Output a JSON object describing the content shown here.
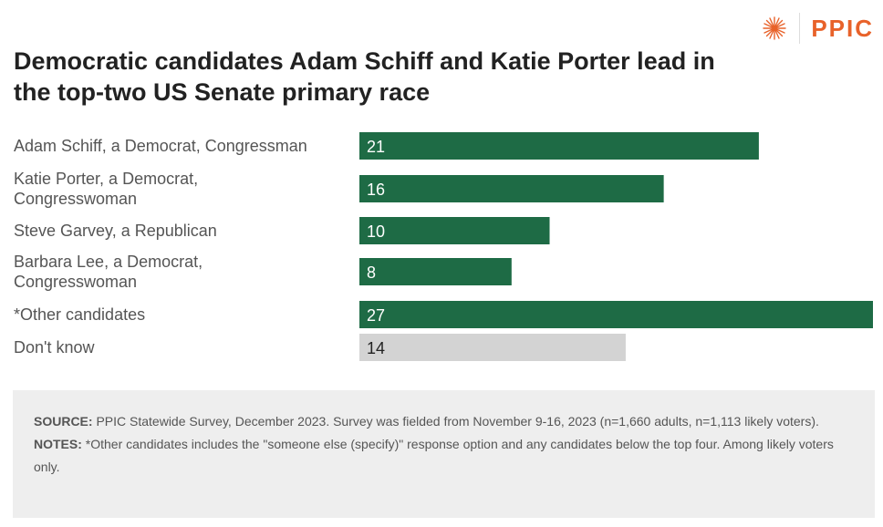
{
  "brand": {
    "logo_text": "PPIC",
    "mark_icon": "ppic-sunburst-icon",
    "color": "#e8622a"
  },
  "title": "Democratic candidates Adam Schiff and Katie Porter lead in the top-two US Senate primary race",
  "colors": {
    "primary_bar": "#1e6b45",
    "dont_know_bar": "#d3d3d3",
    "label_light": "#ffffff",
    "label_dark": "#222222"
  },
  "chart_data": {
    "type": "bar",
    "orientation": "horizontal",
    "categories": [
      [
        "Adam Schiff, a Democrat, Congressman"
      ],
      [
        "Katie Porter, a Democrat,",
        "Congresswoman"
      ],
      [
        "Steve Garvey, a Republican"
      ],
      [
        "Barbara Lee, a Democrat,",
        "Congresswoman"
      ],
      [
        "*Other candidates"
      ],
      [
        "Don't know"
      ]
    ],
    "values": [
      21,
      16,
      10,
      8,
      27,
      14
    ],
    "xlim": [
      0,
      27
    ],
    "grid": false
  },
  "notes": {
    "source_label": "SOURCE:",
    "source_text": " PPIC Statewide Survey, December 2023. Survey was fielded from November 9-16, 2023 (n=1,660 adults, n=1,113 likely voters).",
    "notes_label": "NOTES:",
    "notes_text": " *Other candidates includes the \"someone else (specify)\" response option and any candidates below the top four. Among likely voters only."
  }
}
